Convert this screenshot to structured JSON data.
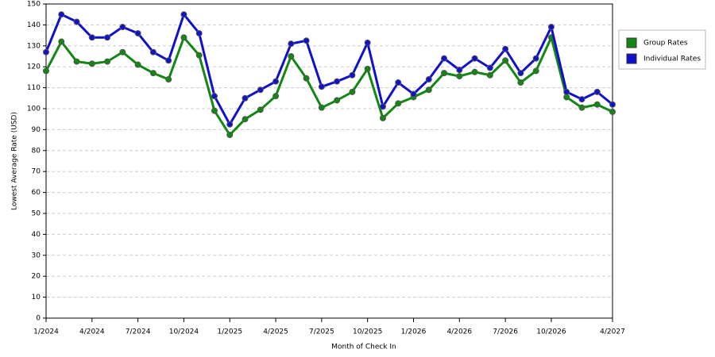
{
  "chart_data": {
    "type": "line",
    "x_label": "Month of Check In",
    "y_label": "Lowest Average Rate (USD)",
    "categories": [
      "1/2024",
      null,
      null,
      "4/2024",
      null,
      null,
      "7/2024",
      null,
      null,
      "10/2024",
      null,
      null,
      "1/2025",
      null,
      null,
      "4/2025",
      null,
      null,
      "7/2025",
      null,
      null,
      "10/2025",
      null,
      null,
      "1/2026",
      null,
      null,
      "4/2026",
      null,
      null,
      "7/2026",
      null,
      null,
      "10/2026",
      null,
      null,
      null,
      "4/2027"
    ],
    "series": [
      {
        "name": "Group Rates",
        "color": "#118811",
        "values": [
          118,
          132,
          122.5,
          121.5,
          122.5,
          127,
          121,
          117,
          114,
          134,
          125.5,
          99,
          87.5,
          95,
          99.5,
          106,
          125,
          114.5,
          100.5,
          104,
          108,
          119,
          95.5,
          102.5,
          105.5,
          109,
          117,
          115.5,
          117.5,
          116,
          123,
          112.5,
          118,
          134,
          105.5,
          100.5,
          102,
          98.5
        ]
      },
      {
        "name": "Individual Rates",
        "color": "#1111cc",
        "values": [
          127,
          145,
          141.5,
          134,
          134,
          139,
          136,
          127,
          123,
          145,
          136,
          106,
          92.5,
          105,
          109,
          113,
          131,
          132.5,
          110.5,
          113,
          116,
          131.5,
          101,
          112.5,
          107,
          114,
          124,
          118.5,
          124,
          119.5,
          128.5,
          117,
          124,
          139,
          108,
          104.5,
          108,
          102
        ]
      }
    ],
    "ylim": [
      0,
      150
    ],
    "yticks": [
      0,
      10,
      20,
      30,
      40,
      50,
      60,
      70,
      80,
      90,
      100,
      110,
      120,
      130,
      140,
      150
    ],
    "grid": true,
    "legend": "right"
  }
}
